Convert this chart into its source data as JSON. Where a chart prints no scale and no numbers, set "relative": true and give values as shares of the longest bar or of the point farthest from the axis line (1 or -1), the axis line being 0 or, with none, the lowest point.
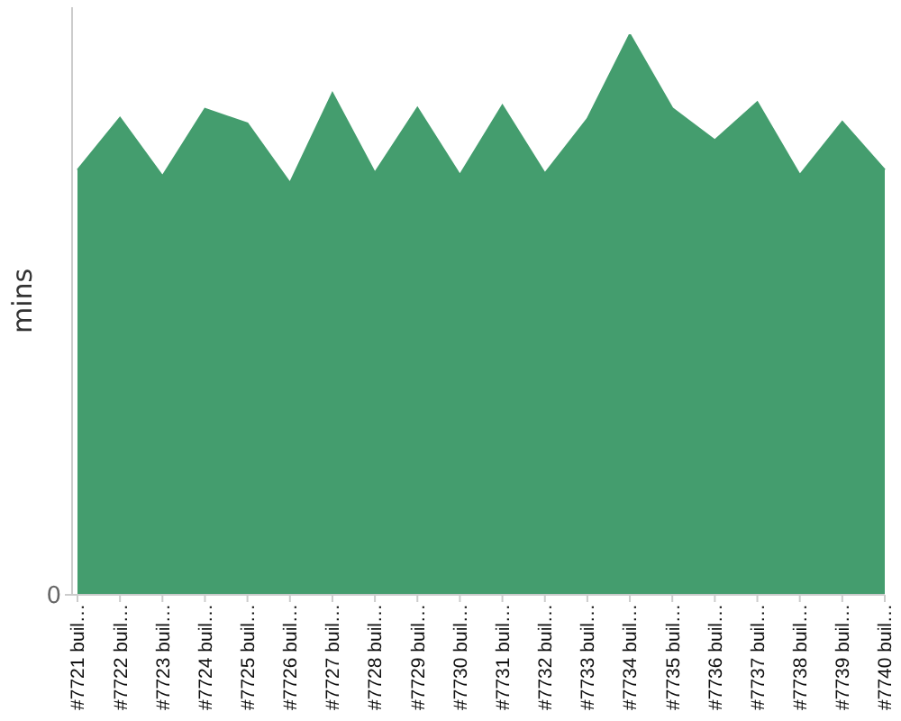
{
  "chart_data": {
    "type": "area",
    "ylabel": "mins",
    "relative": true,
    "annotations": [
      "0"
    ],
    "categories": [
      "#7721 buil…",
      "#7722 buil…",
      "#7723 buil…",
      "#7724 buil…",
      "#7725 buil…",
      "#7726 buil…",
      "#7727 buil…",
      "#7728 buil…",
      "#7729 buil…",
      "#7730 buil…",
      "#7731 buil…",
      "#7732 buil…",
      "#7733 buil…",
      "#7734 buil…",
      "#7735 buil…",
      "#7736 buil…",
      "#7737 buil…",
      "#7738 buil…",
      "#7739 buil…",
      "#7740 buil…"
    ],
    "values": [
      0.758,
      0.851,
      0.747,
      0.867,
      0.841,
      0.735,
      0.895,
      0.753,
      0.869,
      0.749,
      0.873,
      0.752,
      0.849,
      1,
      0.868,
      0.811,
      0.879,
      0.749,
      0.844,
      0.758
    ],
    "color": "#449d6e"
  }
}
